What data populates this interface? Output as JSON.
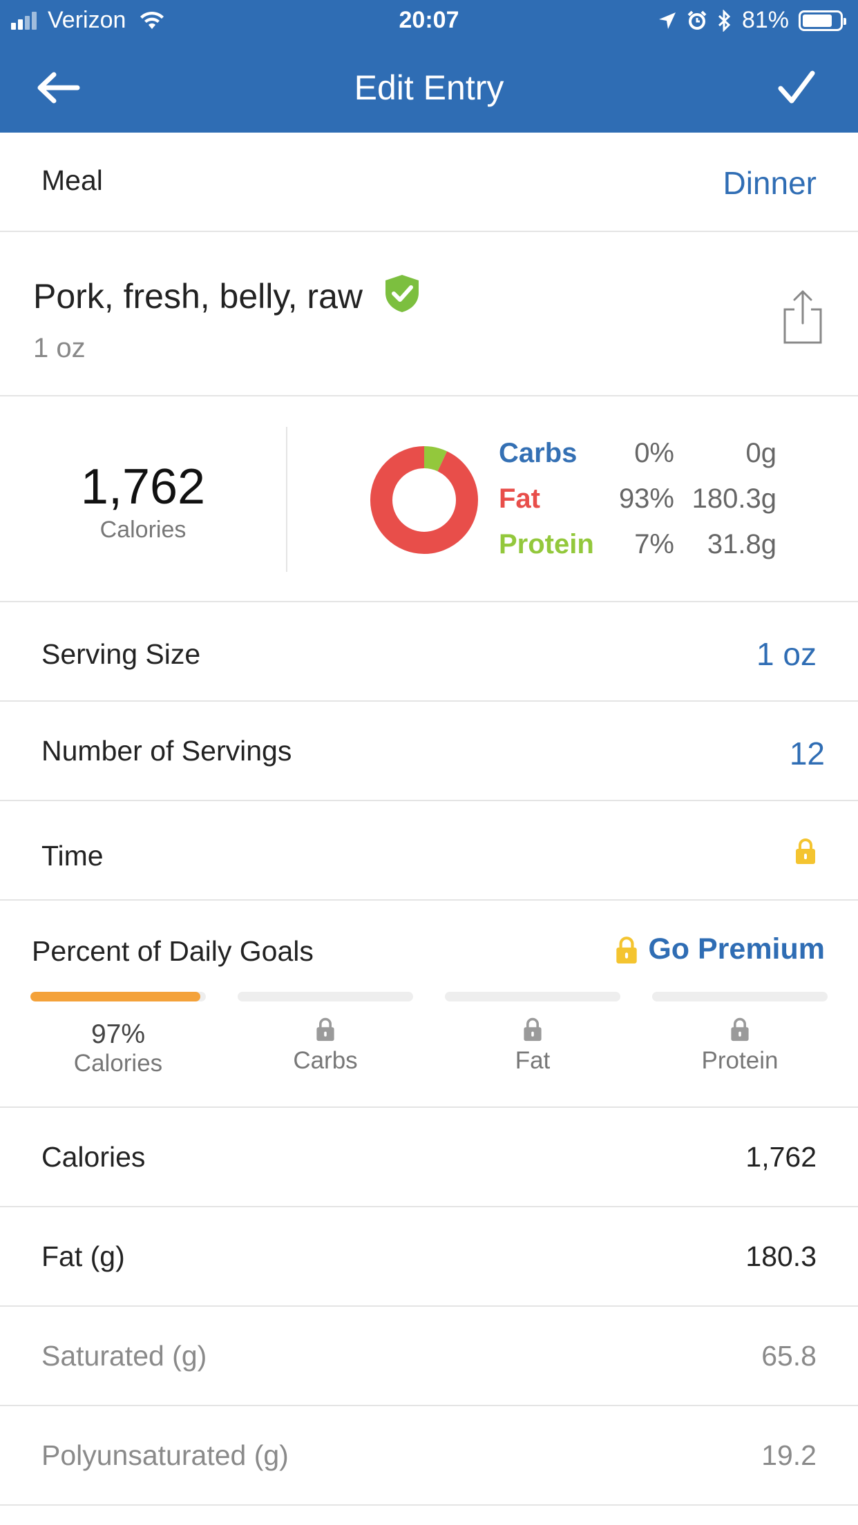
{
  "status_bar": {
    "carrier": "Verizon",
    "time": "20:07",
    "battery": "81%",
    "battery_level": 0.81
  },
  "nav": {
    "title": "Edit Entry"
  },
  "meal": {
    "label": "Meal",
    "value": "Dinner"
  },
  "food": {
    "name": "Pork, fresh, belly, raw",
    "quantity": "1 oz"
  },
  "summary": {
    "calories": "1,762",
    "calories_label": "Calories",
    "macros": [
      {
        "name": "Carbs",
        "percent": "0%",
        "grams": "0g",
        "fraction": 0.0,
        "color": "#3470b4"
      },
      {
        "name": "Fat",
        "percent": "93%",
        "grams": "180.3g",
        "fraction": 0.93,
        "color": "#e84e4a"
      },
      {
        "name": "Protein",
        "percent": "7%",
        "grams": "31.8g",
        "fraction": 0.07,
        "color": "#93c83c"
      }
    ]
  },
  "serving_size": {
    "label": "Serving Size",
    "value": "1 oz"
  },
  "number_of_servings": {
    "label": "Number of Servings",
    "value": "12"
  },
  "time": {
    "label": "Time"
  },
  "goals": {
    "title": "Percent of Daily Goals",
    "premium_label": "Go Premium",
    "items": [
      {
        "label": "Calories",
        "percent": "97%",
        "progress": 0.97,
        "locked": false
      },
      {
        "label": "Carbs",
        "locked": true
      },
      {
        "label": "Fat",
        "locked": true
      },
      {
        "label": "Protein",
        "locked": true
      }
    ]
  },
  "nutrients": [
    {
      "label": "Calories",
      "value": "1,762"
    },
    {
      "label": "Fat (g)",
      "value": "180.3"
    },
    {
      "label": "Saturated (g)",
      "value": "65.8"
    },
    {
      "label": "Polyunsaturated (g)",
      "value": "19.2"
    }
  ],
  "colors": {
    "brand_blue": "#2f6db4",
    "accent_orange": "#f4a23a",
    "lock_yellow": "#f4c430",
    "verified_green": "#7cbf3f"
  }
}
